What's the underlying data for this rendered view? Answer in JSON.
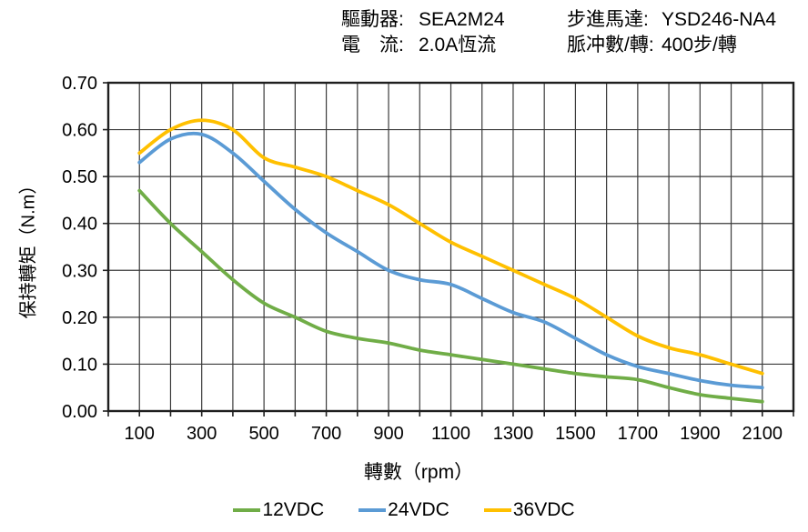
{
  "header": {
    "rows": [
      {
        "left_label": "驅動器:",
        "left_value": "SEA2M24",
        "right_label": "步進馬達:",
        "right_value": "YSD246-NA4"
      },
      {
        "left_label": "電　流:",
        "left_value": "2.0A恆流",
        "right_label": "脈冲數/轉:",
        "right_value": "400步/轉"
      }
    ]
  },
  "chart_data": {
    "type": "line",
    "title": "",
    "xlabel": "轉數（rpm）",
    "ylabel": "保持轉矩（N.m）",
    "xlim": [
      0,
      2200
    ],
    "ylim": [
      0,
      0.7
    ],
    "grid_step_x_rpm": 100,
    "grid_step_y_nm": 0.1,
    "grid": "on",
    "legend_position": "bottom",
    "x": [
      100,
      200,
      300,
      400,
      500,
      600,
      700,
      800,
      900,
      1000,
      1100,
      1200,
      1300,
      1400,
      1500,
      1600,
      1700,
      1800,
      1900,
      2000,
      2100
    ],
    "x_ticks": [
      100,
      300,
      500,
      700,
      900,
      1100,
      1300,
      1500,
      1700,
      1900,
      2100
    ],
    "y_ticks": [
      0.0,
      0.1,
      0.2,
      0.3,
      0.4,
      0.5,
      0.6,
      0.7
    ],
    "series": [
      {
        "name": "12VDC",
        "color": "#70AD47",
        "values": [
          0.47,
          0.4,
          0.34,
          0.28,
          0.23,
          0.2,
          0.17,
          0.155,
          0.145,
          0.13,
          0.12,
          0.11,
          0.1,
          0.09,
          0.08,
          0.073,
          0.067,
          0.05,
          0.035,
          0.027,
          0.02
        ]
      },
      {
        "name": "24VDC",
        "color": "#5B9BD5",
        "values": [
          0.53,
          0.58,
          0.59,
          0.55,
          0.49,
          0.43,
          0.38,
          0.34,
          0.3,
          0.28,
          0.27,
          0.24,
          0.21,
          0.19,
          0.155,
          0.12,
          0.095,
          0.08,
          0.065,
          0.055,
          0.05
        ]
      },
      {
        "name": "36VDC",
        "color": "#FFC000",
        "values": [
          0.55,
          0.6,
          0.62,
          0.6,
          0.54,
          0.52,
          0.5,
          0.47,
          0.44,
          0.4,
          0.36,
          0.33,
          0.3,
          0.27,
          0.24,
          0.2,
          0.16,
          0.135,
          0.12,
          0.1,
          0.08
        ]
      }
    ]
  }
}
